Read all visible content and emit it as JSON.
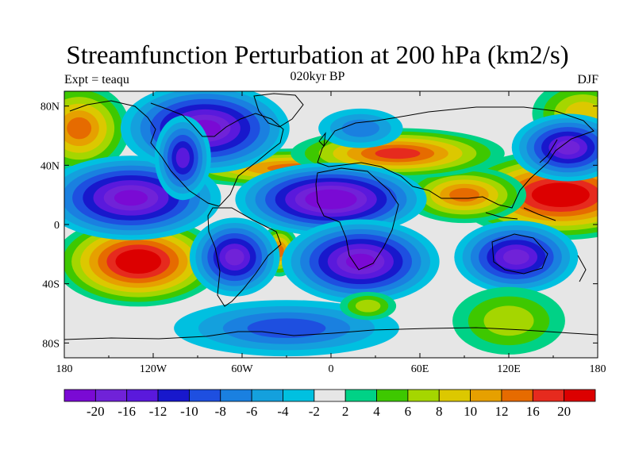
{
  "title": "Streamfunction Perturbation at 200 hPa (km2/s)",
  "left_label": "Expt = teaqu",
  "center_label": "020kyr BP",
  "right_label": "DJF",
  "map": {
    "type": "filled-contour-map",
    "projection": "cylindrical-equidistant",
    "lon_range": [
      -180,
      180
    ],
    "lat_range": [
      -90,
      90
    ],
    "background_color": "#e6e6e6",
    "coastline_color": "#000000",
    "lon_ticks": [
      {
        "value": -180,
        "label": "180"
      },
      {
        "value": -120,
        "label": "120W"
      },
      {
        "value": -60,
        "label": "60W"
      },
      {
        "value": 0,
        "label": "0"
      },
      {
        "value": 60,
        "label": "60E"
      },
      {
        "value": 120,
        "label": "120E"
      },
      {
        "value": 180,
        "label": "180"
      }
    ],
    "lat_ticks": [
      {
        "value": 80,
        "label": "80N"
      },
      {
        "value": 40,
        "label": "40N"
      },
      {
        "value": 0,
        "label": "0"
      },
      {
        "value": -40,
        "label": "40S"
      },
      {
        "value": -80,
        "label": "80S"
      }
    ],
    "features": [
      {
        "lon": 155,
        "lat": 20,
        "value": 24,
        "rx": 38,
        "ry": 16
      },
      {
        "lon": 90,
        "lat": 20,
        "value": 14,
        "rx": 22,
        "ry": 10
      },
      {
        "lon": -130,
        "lat": -25,
        "value": 24,
        "rx": 30,
        "ry": 16
      },
      {
        "lon": -170,
        "lat": 65,
        "value": 14,
        "rx": 18,
        "ry": 16
      },
      {
        "lon": -20,
        "lat": 38,
        "value": 14,
        "rx": 50,
        "ry": 7
      },
      {
        "lon": 45,
        "lat": 48,
        "value": 16,
        "rx": 38,
        "ry": 9
      },
      {
        "lon": 170,
        "lat": 75,
        "value": 8,
        "rx": 18,
        "ry": 12
      },
      {
        "lon": -35,
        "lat": -18,
        "value": 14,
        "rx": 7,
        "ry": 9
      },
      {
        "lon": -135,
        "lat": 18,
        "value": -20,
        "rx": 32,
        "ry": 15
      },
      {
        "lon": -85,
        "lat": 65,
        "value": -20,
        "rx": 30,
        "ry": 16
      },
      {
        "lon": -100,
        "lat": 45,
        "value": -14,
        "rx": 10,
        "ry": 15
      },
      {
        "lon": 0,
        "lat": 17,
        "value": -22,
        "rx": 34,
        "ry": 13
      },
      {
        "lon": 20,
        "lat": -25,
        "value": -20,
        "rx": 28,
        "ry": 15
      },
      {
        "lon": 125,
        "lat": -22,
        "value": -18,
        "rx": 22,
        "ry": 13
      },
      {
        "lon": 160,
        "lat": 52,
        "value": -18,
        "rx": 20,
        "ry": 12
      },
      {
        "lon": -65,
        "lat": -22,
        "value": -16,
        "rx": 16,
        "ry": 14
      },
      {
        "lon": 20,
        "lat": 65,
        "value": -6,
        "rx": 15,
        "ry": 7
      },
      {
        "lon": -30,
        "lat": -70,
        "value": -8,
        "rx": 40,
        "ry": 10
      },
      {
        "lon": 25,
        "lat": -55,
        "value": 6,
        "rx": 10,
        "ry": 5
      },
      {
        "lon": 120,
        "lat": -65,
        "value": 6,
        "rx": 20,
        "ry": 12
      }
    ]
  },
  "colorbar": {
    "colors": [
      "#7a0ad4",
      "#7022d8",
      "#5a19dc",
      "#1818cc",
      "#1e4fe0",
      "#1a80e0",
      "#14a0dd",
      "#00c0e0",
      "#e6e6e6",
      "#00d286",
      "#3ec800",
      "#a5d600",
      "#dcc800",
      "#e6a000",
      "#e66b00",
      "#e62a1e",
      "#dc0000"
    ],
    "labels": [
      "-20",
      "-16",
      "-12",
      "-10",
      "-8",
      "-6",
      "-4",
      "-2",
      "2",
      "4",
      "6",
      "8",
      "10",
      "12",
      "16",
      "20"
    ],
    "levels": [
      -22,
      -20,
      -16,
      -12,
      -10,
      -8,
      -6,
      -4,
      -2,
      2,
      4,
      6,
      8,
      10,
      12,
      16,
      20,
      24
    ]
  }
}
